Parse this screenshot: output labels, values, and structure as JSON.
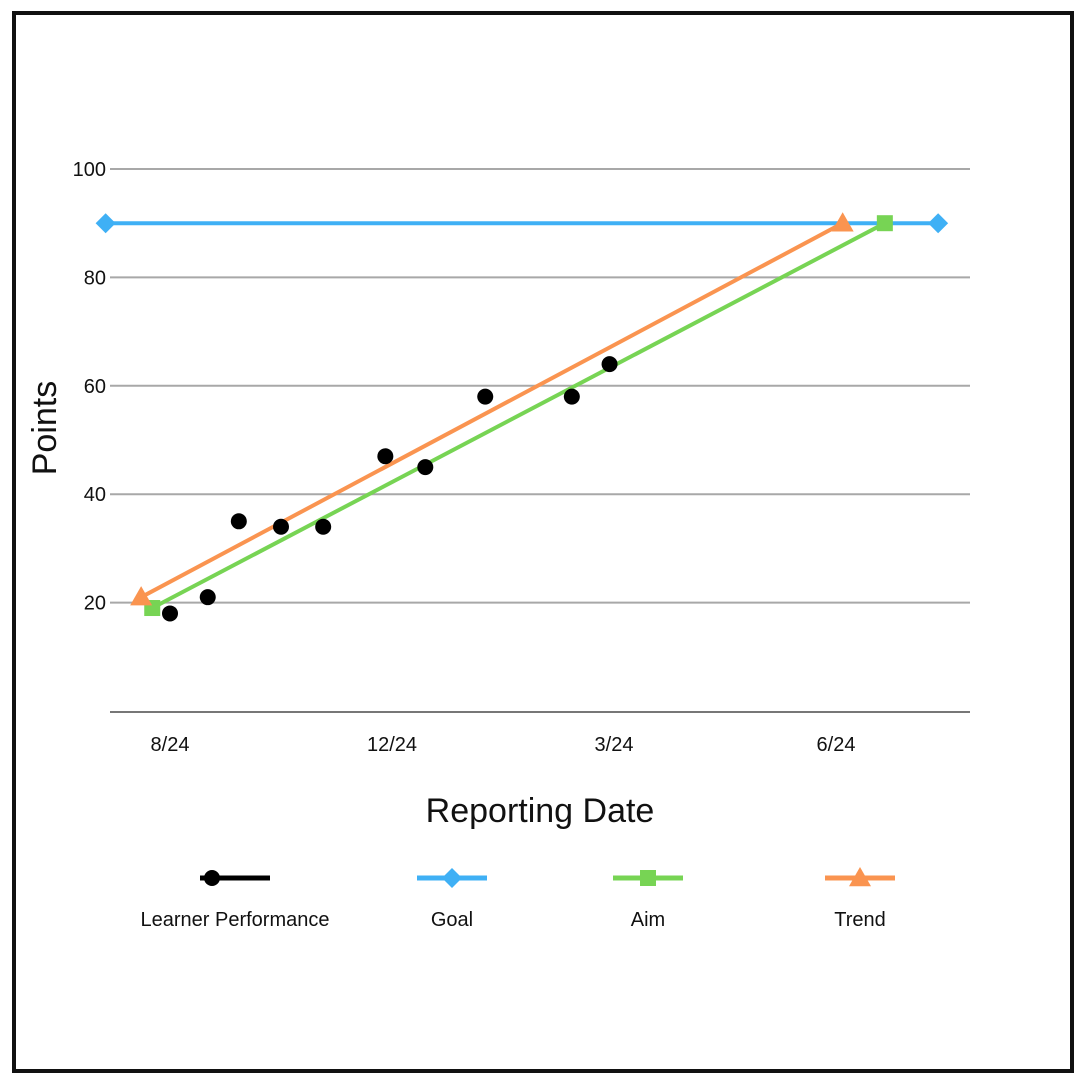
{
  "chart_data": {
    "type": "line",
    "title": "",
    "xlabel": "Reporting Date",
    "ylabel": "Points",
    "ylim": [
      0,
      100
    ],
    "y_ticks": [
      20,
      40,
      60,
      80,
      100
    ],
    "x_ticks": [
      "8/24",
      "12/24",
      "3/24",
      "6/24"
    ],
    "x_tick_positions": [
      0,
      1,
      2,
      3
    ],
    "xlim": [
      -0.25,
      3.5
    ],
    "grid": true,
    "legend_placement": "bottom",
    "series": [
      {
        "name": "Learner Performance",
        "kind": "scatter",
        "marker": "circle",
        "color": "#000000",
        "points": [
          {
            "x": 0.0,
            "y": 18
          },
          {
            "x": 0.17,
            "y": 21
          },
          {
            "x": 0.31,
            "y": 35
          },
          {
            "x": 0.5,
            "y": 34
          },
          {
            "x": 0.69,
            "y": 34
          },
          {
            "x": 0.97,
            "y": 47
          },
          {
            "x": 1.15,
            "y": 45
          },
          {
            "x": 1.42,
            "y": 58
          },
          {
            "x": 1.81,
            "y": 58
          },
          {
            "x": 1.98,
            "y": 64
          }
        ]
      },
      {
        "name": "Goal",
        "kind": "line",
        "marker": "diamond",
        "color": "#3fb0f5",
        "points": [
          {
            "x": -0.29,
            "y": 90
          },
          {
            "x": 3.46,
            "y": 90
          }
        ]
      },
      {
        "name": "Aim",
        "kind": "line",
        "marker": "square",
        "color": "#77d454",
        "points": [
          {
            "x": -0.08,
            "y": 19
          },
          {
            "x": 3.22,
            "y": 90
          }
        ]
      },
      {
        "name": "Trend",
        "kind": "line",
        "marker": "triangle",
        "color": "#fa9450",
        "points": [
          {
            "x": -0.13,
            "y": 21
          },
          {
            "x": 3.03,
            "y": 90
          }
        ]
      }
    ]
  },
  "colors": {
    "grid": "#a8a8a8",
    "axis": "#777777",
    "text": "#111111"
  }
}
